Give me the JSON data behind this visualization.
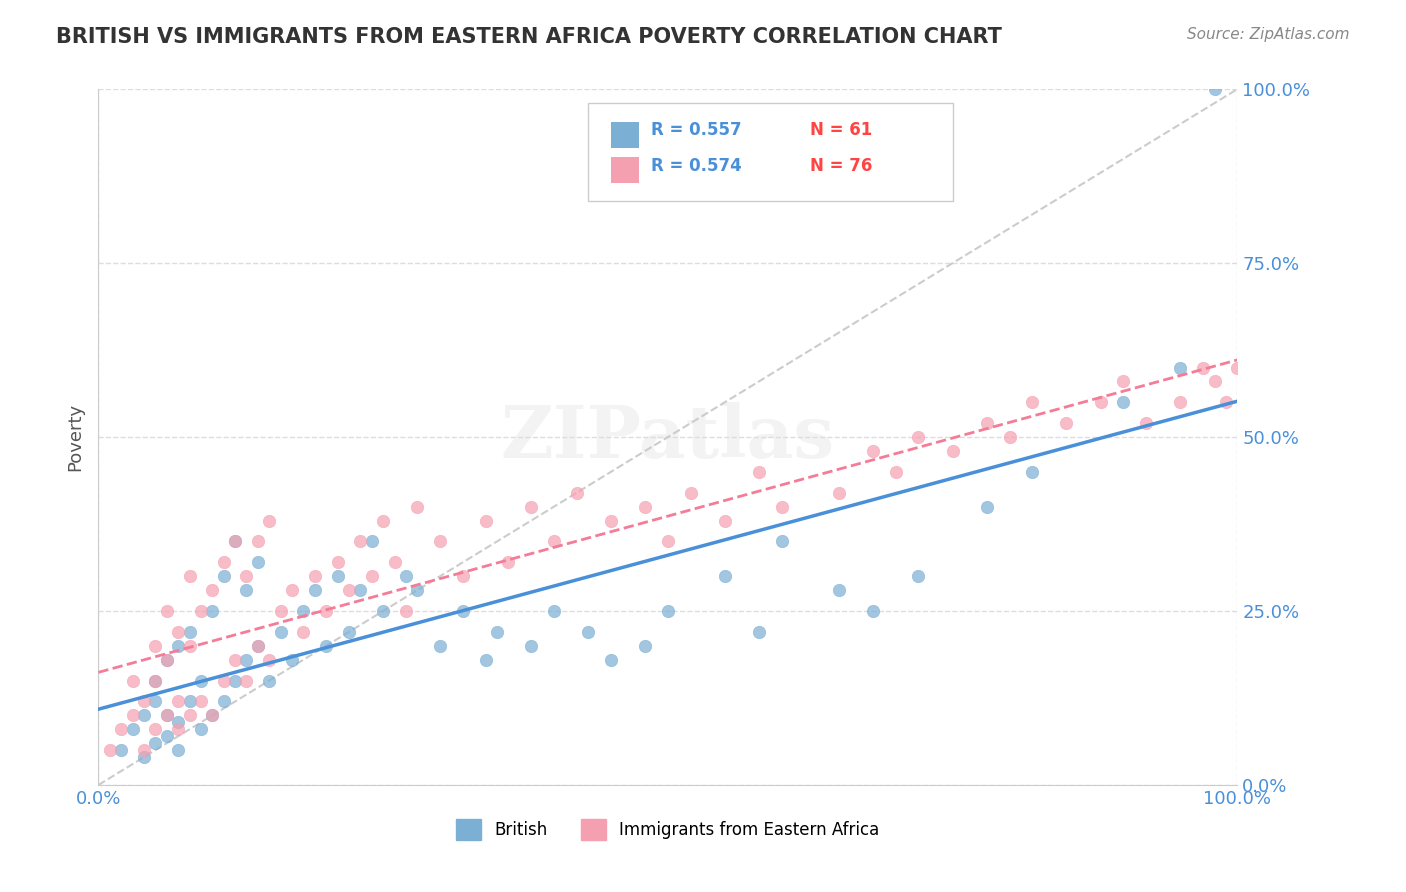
{
  "title": "BRITISH VS IMMIGRANTS FROM EASTERN AFRICA POVERTY CORRELATION CHART",
  "source": "Source: ZipAtlas.com",
  "xlabel": "",
  "ylabel": "Poverty",
  "watermark": "ZIPatlas",
  "xlim": [
    0,
    1.0
  ],
  "ylim": [
    0,
    1.0
  ],
  "ytick_labels": [
    "0.0%",
    "25.0%",
    "50.0%",
    "75.0%",
    "100.0%"
  ],
  "ytick_vals": [
    0,
    0.25,
    0.5,
    0.75,
    1.0
  ],
  "xtick_labels": [
    "0.0%",
    "100.0%"
  ],
  "xtick_vals": [
    0,
    1.0
  ],
  "british_R": 0.557,
  "british_N": 61,
  "eastern_africa_R": 0.574,
  "eastern_africa_N": 76,
  "british_color": "#7BAFD4",
  "eastern_africa_color": "#F4A0B0",
  "british_line_color": "#4A90D9",
  "eastern_africa_line_color": "#F47C96",
  "diagonal_line_color": "#CCCCCC",
  "background_color": "#FFFFFF",
  "grid_color": "#DDDDDD",
  "title_color": "#333333",
  "axis_label_color": "#4A90D9",
  "legend_R_color": "#4A90D9",
  "legend_N_color": "#FF4444",
  "british_scatter_x": [
    0.02,
    0.03,
    0.04,
    0.04,
    0.05,
    0.05,
    0.05,
    0.06,
    0.06,
    0.06,
    0.07,
    0.07,
    0.07,
    0.08,
    0.08,
    0.09,
    0.09,
    0.1,
    0.1,
    0.11,
    0.11,
    0.12,
    0.12,
    0.13,
    0.13,
    0.14,
    0.14,
    0.15,
    0.16,
    0.17,
    0.18,
    0.19,
    0.2,
    0.21,
    0.22,
    0.23,
    0.24,
    0.25,
    0.27,
    0.28,
    0.3,
    0.32,
    0.34,
    0.35,
    0.38,
    0.4,
    0.43,
    0.45,
    0.48,
    0.5,
    0.55,
    0.58,
    0.6,
    0.65,
    0.68,
    0.72,
    0.78,
    0.82,
    0.9,
    0.95,
    0.98
  ],
  "british_scatter_y": [
    0.05,
    0.08,
    0.04,
    0.1,
    0.06,
    0.12,
    0.15,
    0.07,
    0.1,
    0.18,
    0.05,
    0.09,
    0.2,
    0.12,
    0.22,
    0.08,
    0.15,
    0.1,
    0.25,
    0.12,
    0.3,
    0.15,
    0.35,
    0.18,
    0.28,
    0.2,
    0.32,
    0.15,
    0.22,
    0.18,
    0.25,
    0.28,
    0.2,
    0.3,
    0.22,
    0.28,
    0.35,
    0.25,
    0.3,
    0.28,
    0.2,
    0.25,
    0.18,
    0.22,
    0.2,
    0.25,
    0.22,
    0.18,
    0.2,
    0.25,
    0.3,
    0.22,
    0.35,
    0.28,
    0.25,
    0.3,
    0.4,
    0.45,
    0.55,
    0.6,
    1.0
  ],
  "eastern_scatter_x": [
    0.01,
    0.02,
    0.03,
    0.03,
    0.04,
    0.04,
    0.05,
    0.05,
    0.05,
    0.06,
    0.06,
    0.06,
    0.07,
    0.07,
    0.07,
    0.08,
    0.08,
    0.08,
    0.09,
    0.09,
    0.1,
    0.1,
    0.11,
    0.11,
    0.12,
    0.12,
    0.13,
    0.13,
    0.14,
    0.14,
    0.15,
    0.15,
    0.16,
    0.17,
    0.18,
    0.19,
    0.2,
    0.21,
    0.22,
    0.23,
    0.24,
    0.25,
    0.26,
    0.27,
    0.28,
    0.3,
    0.32,
    0.34,
    0.36,
    0.38,
    0.4,
    0.42,
    0.45,
    0.48,
    0.5,
    0.52,
    0.55,
    0.58,
    0.6,
    0.65,
    0.68,
    0.7,
    0.72,
    0.75,
    0.78,
    0.8,
    0.82,
    0.85,
    0.88,
    0.9,
    0.92,
    0.95,
    0.97,
    0.98,
    0.99,
    1.0
  ],
  "eastern_scatter_y": [
    0.05,
    0.08,
    0.1,
    0.15,
    0.05,
    0.12,
    0.08,
    0.15,
    0.2,
    0.1,
    0.18,
    0.25,
    0.08,
    0.12,
    0.22,
    0.1,
    0.2,
    0.3,
    0.12,
    0.25,
    0.1,
    0.28,
    0.15,
    0.32,
    0.18,
    0.35,
    0.15,
    0.3,
    0.2,
    0.35,
    0.18,
    0.38,
    0.25,
    0.28,
    0.22,
    0.3,
    0.25,
    0.32,
    0.28,
    0.35,
    0.3,
    0.38,
    0.32,
    0.25,
    0.4,
    0.35,
    0.3,
    0.38,
    0.32,
    0.4,
    0.35,
    0.42,
    0.38,
    0.4,
    0.35,
    0.42,
    0.38,
    0.45,
    0.4,
    0.42,
    0.48,
    0.45,
    0.5,
    0.48,
    0.52,
    0.5,
    0.55,
    0.52,
    0.55,
    0.58,
    0.52,
    0.55,
    0.6,
    0.58,
    0.55,
    0.6
  ]
}
